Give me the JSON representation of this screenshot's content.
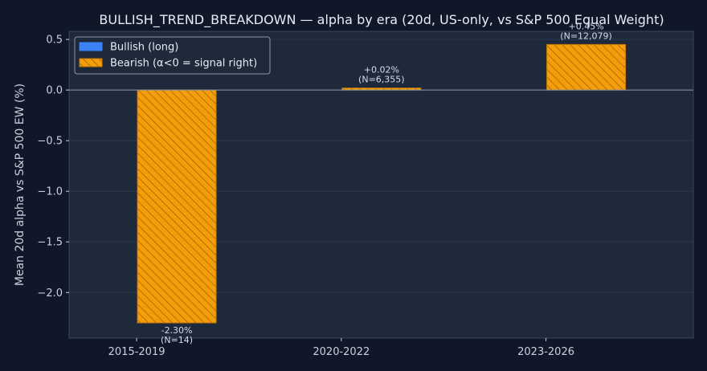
{
  "chart_data": {
    "type": "bar",
    "title": "BULLISH_TREND_BREAKDOWN — alpha by era (20d, US-only, vs S&P 500 Equal Weight)",
    "ylabel": "Mean 20d alpha vs S&P 500 EW (%)",
    "xlabel": "",
    "categories": [
      "2015-2019",
      "2020-2022",
      "2023-2026"
    ],
    "ylim": [
      -2.45,
      0.58
    ],
    "yticks": [
      0.5,
      0.0,
      -0.5,
      -1.0,
      -1.5,
      -2.0
    ],
    "ytick_labels": [
      "0.5",
      "0.0",
      "−0.5",
      "−1.0",
      "−1.5",
      "−2.0"
    ],
    "grid": true,
    "legend_position": "top-left",
    "legend": [
      {
        "name": "Bullish (long)",
        "color": "#3b82f6",
        "hatch": false
      },
      {
        "name": "Bearish (α<0 = signal right)",
        "color": "#f59e0b",
        "hatch": true
      }
    ],
    "series": [
      {
        "name": "Bullish (long)",
        "color": "#3b82f6",
        "values": [
          null,
          null,
          null
        ]
      },
      {
        "name": "Bearish (α<0 = signal right)",
        "color": "#f59e0b",
        "values": [
          -2.3,
          0.02,
          0.45
        ]
      }
    ],
    "data_labels": [
      {
        "pct": "-2.30%",
        "n": "(N=14)"
      },
      {
        "pct": "+0.02%",
        "n": "(N=6,355)"
      },
      {
        "pct": "+0.45%",
        "n": "(N=12,079)"
      }
    ]
  }
}
